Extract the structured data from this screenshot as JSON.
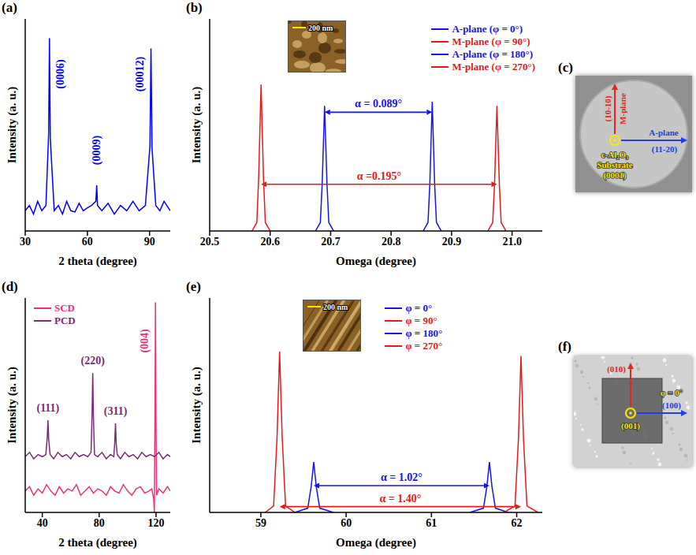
{
  "chart_data": [
    {
      "type": "line",
      "title": "(a)",
      "x_label": "2 theta (degree)",
      "y_label": "Intensity (a. u.)",
      "log": "y",
      "tick_labels": "x",
      "xlim": [
        30,
        100
      ],
      "xticks": [
        30,
        60,
        90
      ],
      "ylim": [
        1,
        100000
      ],
      "yticks": [
        10,
        100,
        1000,
        10000
      ],
      "x": [
        30,
        32,
        34,
        36,
        38,
        40,
        41.3,
        41.7,
        42.1,
        44,
        46,
        48,
        50,
        52,
        54,
        56,
        58,
        60,
        62,
        64.1,
        64.5,
        64.9,
        67,
        70,
        73,
        76,
        79,
        82,
        85,
        88,
        90.2,
        90.7,
        91.2,
        93,
        95,
        97,
        100
      ],
      "values": [
        3,
        4,
        2.5,
        5,
        3,
        4,
        200,
        35000,
        150,
        3,
        4,
        2.5,
        5,
        3,
        2.8,
        4.5,
        3,
        3.5,
        4,
        5,
        12,
        4,
        3,
        4.5,
        2.5,
        4,
        3,
        5,
        3,
        4,
        100,
        20000,
        90,
        4,
        3,
        5,
        3
      ],
      "color": "#0000ff",
      "annotations": [
        {
          "text": "(0006)",
          "x": 47,
          "y": 5000,
          "color": "#0000ff"
        },
        {
          "text": "(0009)",
          "x": 64.5,
          "y": 80,
          "color": "#0000ff"
        },
        {
          "text": "(00012)",
          "x": 85.5,
          "y": 5000,
          "color": "#0000ff"
        }
      ]
    },
    {
      "type": "line",
      "title": "(b)",
      "x_label": "Omega (degree)",
      "y_label": "Intensity (a. u.)",
      "tick_labels": "x",
      "xlim": [
        20.5,
        21.05
      ],
      "xticks": [
        20.5,
        20.6,
        20.7,
        20.8,
        20.9,
        {
          "value": 21,
          "label": "21.0"
        }
      ],
      "ylim": [
        0,
        1
      ],
      "yticks": [
        0,
        0.2,
        0.4,
        0.6,
        0.8,
        1
      ],
      "legend": "upper right",
      "series": [
        {
          "name": "A-plane (φ = 0°)",
          "color": "#1515e6",
          "x": [
            20.675,
            20.683,
            20.686,
            20.69,
            20.694,
            20.697,
            20.705
          ],
          "values": [
            0,
            0.04,
            0.22,
            0.59,
            0.22,
            0.04,
            0
          ]
        },
        {
          "name": "M-plane (φ = 90°)",
          "color": "#e01b1b",
          "x": [
            20.57,
            20.578,
            20.581,
            20.585,
            20.589,
            20.592,
            20.6
          ],
          "values": [
            0,
            0.04,
            0.25,
            0.69,
            0.25,
            0.04,
            0
          ]
        },
        {
          "name": "A-plane (φ = 180°)",
          "color": "#1515e6",
          "x": [
            20.853,
            20.861,
            20.864,
            20.868,
            20.872,
            20.875,
            20.883
          ],
          "values": [
            0,
            0.04,
            0.22,
            0.61,
            0.22,
            0.04,
            0
          ]
        },
        {
          "name": "M-plane (φ = 270°)",
          "color": "#e01b1b",
          "x": [
            20.96,
            20.968,
            20.971,
            20.975,
            20.979,
            20.982,
            20.99
          ],
          "values": [
            0,
            0.04,
            0.22,
            0.59,
            0.22,
            0.04,
            0
          ]
        }
      ],
      "arrows": [
        {
          "text": "α = 0.089°",
          "from": 20.69,
          "to": 20.868,
          "y": 0.56,
          "color": "#1515e6"
        },
        {
          "text": "α =0.195°",
          "from": 20.585,
          "to": 20.975,
          "y": 0.22,
          "color": "#e01b1b"
        }
      ],
      "inset": {
        "scale_bar": "200 nm"
      }
    },
    {
      "type": "line",
      "title": "(d)",
      "x_label": "2 theta (degree)",
      "y_label": "Intensity (a. u.)",
      "tick_labels": "x",
      "xlim": [
        28,
        130
      ],
      "xticks": [
        40,
        80,
        120
      ],
      "ylim": [
        0,
        100
      ],
      "yticks": [
        0,
        20,
        40,
        60,
        80,
        100
      ],
      "legend": "upper left",
      "series": [
        {
          "name": "SCD",
          "color": "#e8337b",
          "x": [
            28,
            31,
            34,
            37,
            40,
            43,
            46,
            49,
            52,
            55,
            58,
            61,
            64,
            67,
            70,
            73,
            76,
            79,
            82,
            85,
            88,
            91,
            94,
            97,
            100,
            103,
            106,
            109,
            112,
            115,
            117,
            118.4,
            118.8,
            119.2,
            119.6,
            120,
            120.4,
            122,
            125,
            128,
            130
          ],
          "values": [
            10,
            12,
            8,
            11,
            9,
            13,
            10,
            8,
            12,
            9,
            11,
            10,
            13,
            8,
            10,
            12,
            9,
            11,
            10,
            8,
            12,
            10,
            9,
            13,
            10,
            8,
            11,
            12,
            9,
            10,
            11,
            6,
            0,
            40,
            98,
            40,
            8,
            11,
            9,
            12,
            10
          ]
        },
        {
          "name": "PCD",
          "color": "#7b2a78",
          "x": [
            28,
            31,
            34,
            37,
            40,
            42.5,
            43.5,
            44,
            44.5,
            45.5,
            48,
            51,
            54,
            57,
            60,
            63,
            66,
            69,
            72,
            74.3,
            75,
            75.5,
            76,
            76.7,
            79,
            82,
            85,
            88,
            90.3,
            91,
            91.5,
            92,
            92.7,
            95,
            98,
            101,
            104,
            107,
            110,
            113,
            116,
            119,
            122,
            125,
            128,
            130
          ],
          "values": [
            26,
            28,
            25,
            27,
            26,
            27,
            35,
            43,
            34,
            27,
            25,
            28,
            26,
            27,
            25,
            28,
            26,
            27,
            26,
            28,
            45,
            65,
            44,
            27,
            26,
            28,
            25,
            27,
            26,
            33,
            41.5,
            32,
            27,
            25,
            28,
            26,
            27,
            25,
            28,
            26,
            27,
            26,
            28,
            25,
            27,
            26
          ]
        }
      ],
      "annotations": [
        {
          "text": "(111)",
          "x": 44,
          "y": 47,
          "color": "#7b2a78"
        },
        {
          "text": "(220)",
          "x": 75.5,
          "y": 69,
          "color": "#7b2a78"
        },
        {
          "text": "(311)",
          "x": 91.5,
          "y": 45.5,
          "color": "#7b2a78"
        },
        {
          "text": "(004)",
          "x": 112,
          "y": 80,
          "color": "#e8337b"
        }
      ]
    },
    {
      "type": "line",
      "title": "(e)",
      "x_label": "Omega (degree)",
      "y_label": "Intensity (a. u.)",
      "tick_labels": "x",
      "xlim": [
        58.4,
        62.3
      ],
      "xticks": [
        59,
        60,
        61,
        62
      ],
      "ylim": [
        0,
        1
      ],
      "yticks": [
        0,
        0.2,
        0.4,
        0.6,
        0.8,
        1
      ],
      "legend": "top",
      "series": [
        {
          "name": "φ = 0°",
          "color": "#1515e6",
          "x": [
            59.4,
            59.55,
            59.59,
            59.62,
            59.65,
            59.69,
            59.85
          ],
          "values": [
            0,
            0.02,
            0.12,
            0.235,
            0.12,
            0.02,
            0
          ]
        },
        {
          "name": "φ = 90°",
          "color": "#e01b1b",
          "x": [
            59.05,
            59.15,
            59.19,
            59.22,
            59.25,
            59.29,
            59.4
          ],
          "values": [
            0,
            0.03,
            0.35,
            0.75,
            0.35,
            0.03,
            0
          ]
        },
        {
          "name": "φ = 180°",
          "color": "#1515e6",
          "x": [
            61.45,
            61.61,
            61.65,
            61.68,
            61.71,
            61.75,
            61.9
          ],
          "values": [
            0,
            0.02,
            0.12,
            0.235,
            0.12,
            0.02,
            0
          ]
        },
        {
          "name": "φ = 270°",
          "color": "#e01b1b",
          "x": [
            61.85,
            61.98,
            62.02,
            62.05,
            62.08,
            62.12,
            62.25
          ],
          "values": [
            0,
            0.03,
            0.34,
            0.73,
            0.34,
            0.03,
            0
          ]
        }
      ],
      "arrows": [
        {
          "text": "α = 1.02°",
          "from": 59.62,
          "to": 61.68,
          "y": 0.125,
          "color": "#1515e6"
        },
        {
          "text": "α = 1.40°",
          "from": 59.22,
          "to": 62.05,
          "y": 0.027,
          "color": "#e01b1b"
        }
      ],
      "inset": {
        "scale_bar": "200 nm"
      }
    }
  ],
  "diagrams": [
    {
      "title": "(c)",
      "up_arrow": {
        "labels": [
          "(10-10)",
          "M-plane"
        ],
        "color": "#e8251f"
      },
      "right_arrow": {
        "labels": [
          "A-plane",
          "(11-20)"
        ],
        "color": "#2040e8"
      },
      "center": {
        "labels": [
          "c-Al₂O₃",
          "Substrate",
          "(0001)"
        ],
        "color": "#ffe600"
      }
    },
    {
      "title": "(f)",
      "up_arrow": {
        "labels": [
          "(010)"
        ],
        "color": "#e8251f"
      },
      "right_arrow": {
        "labels": [
          "(100)"
        ],
        "color": "#2040e8"
      },
      "center": {
        "labels": [
          "(001)",
          "φ = 0°"
        ],
        "color": "#ffe600"
      }
    }
  ]
}
